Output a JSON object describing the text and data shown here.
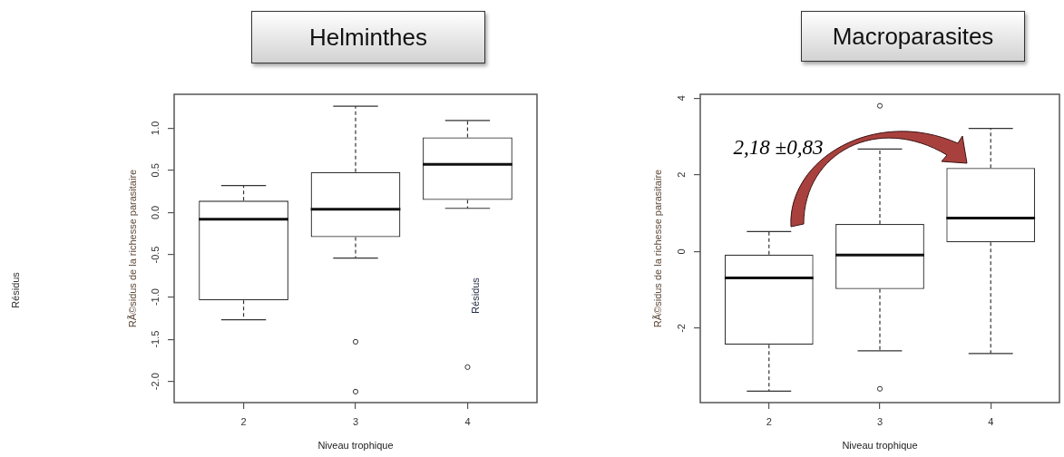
{
  "chart_data": [
    {
      "type": "box",
      "title": "Helminthes",
      "xlabel": "Niveau trophique",
      "ylabel": "RÃ©sidus de la richesse parasitaire",
      "categories": [
        "2",
        "3",
        "4"
      ],
      "boxes": [
        {
          "low": -1.27,
          "q1": -1.04,
          "median": -0.08,
          "q3": 0.14,
          "high": 0.32
        },
        {
          "low": -0.54,
          "q1": -0.29,
          "median": 0.04,
          "q3": 0.48,
          "high": 1.26,
          "outliers": [
            -1.53,
            -2.12
          ]
        },
        {
          "low": 0.05,
          "q1": 0.15,
          "median": 0.57,
          "q3": 0.89,
          "high": 1.09,
          "outliers": [
            -1.83
          ]
        }
      ],
      "ylim": [
        -2.25,
        1.4
      ],
      "yticks": [
        {
          "value": -2,
          "label": "-2.0"
        },
        -1.5,
        {
          "value": -1,
          "label": "-1.0"
        },
        -0.5,
        {
          "value": 0,
          "label": "0.0"
        },
        0.5,
        {
          "value": 1,
          "label": "1.0"
        }
      ],
      "annotations": [
        "Résidus",
        "Résidus"
      ]
    },
    {
      "type": "box",
      "title": "Macroparasites",
      "xlabel": "Niveau trophique",
      "ylabel": "RÃ©sidus de la richesse parasitaire",
      "categories": [
        "2",
        "3",
        "4"
      ],
      "boxes": [
        {
          "low": -3.64,
          "q1": -2.43,
          "median": -0.69,
          "q3": -0.08,
          "high": 0.52
        },
        {
          "low": -2.59,
          "q1": -0.98,
          "median": -0.09,
          "q3": 0.72,
          "high": 2.67,
          "outliers": [
            3.8,
            -3.58
          ]
        },
        {
          "low": -2.66,
          "q1": 0.24,
          "median": 0.87,
          "q3": 2.18,
          "high": 3.21
        }
      ],
      "ylim": [
        -3.94,
        4.1
      ],
      "yticks": [
        -2,
        0,
        2,
        4
      ],
      "annotations": [
        "2,18 ±0,83"
      ]
    }
  ]
}
